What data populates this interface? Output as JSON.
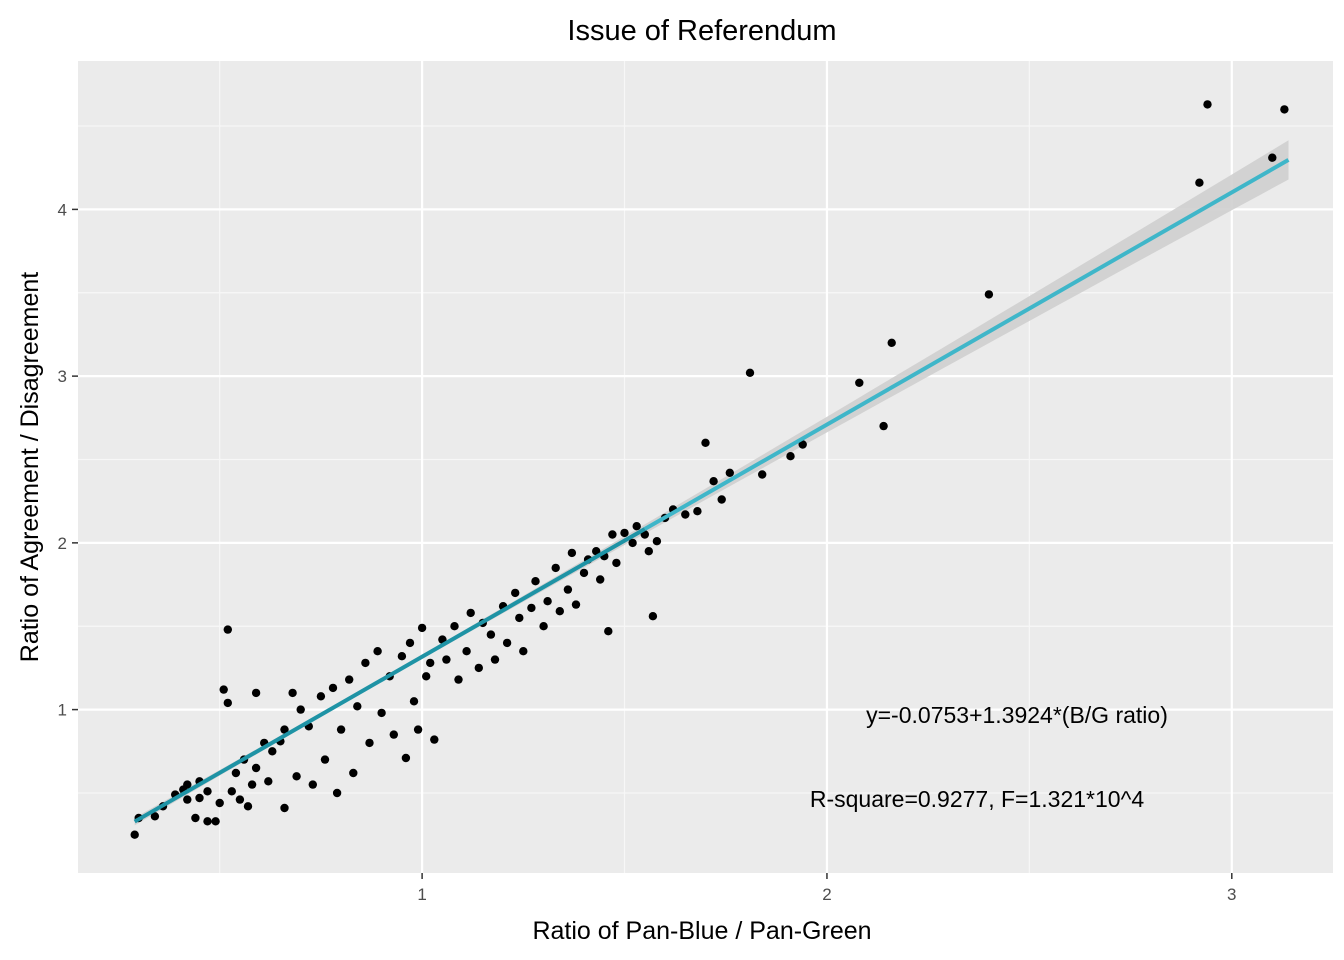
{
  "chart_data": {
    "type": "scatter",
    "title": "Issue of Referendum",
    "xlabel": "Ratio of Pan-Blue / Pan-Green",
    "ylabel": "Ratio of Agreement / Disagreement",
    "xlim": [
      0.15,
      3.25
    ],
    "ylim": [
      0.02,
      4.89
    ],
    "x_ticks": [
      1,
      2,
      3
    ],
    "x_tick_labels": [
      "1",
      "2",
      "3"
    ],
    "y_ticks": [
      1,
      2,
      3,
      4
    ],
    "y_tick_labels": [
      "1",
      "2",
      "3",
      "4"
    ],
    "grid": true,
    "legend": "none",
    "colors": {
      "panel": "#ebebeb",
      "grid_major": "#ffffff",
      "grid_minor": "#f7f7f7",
      "points": "#000000",
      "fit_line": "#3fb6c9",
      "fit_line_dense": "#1e93a5",
      "confidence_band": "#cfcfcf"
    },
    "fit": {
      "intercept": -0.0753,
      "slope": 1.3924,
      "x_range": [
        0.29,
        3.14
      ],
      "dense_until_x": 1.55
    },
    "annotations": [
      {
        "text": "y=-0.0753+1.3924*(B/G ratio)",
        "x": 2.5,
        "y": 0.98
      },
      {
        "text": "R-square=0.9277, F=1.321*10^4",
        "x": 2.43,
        "y": 0.48
      }
    ],
    "series": [
      {
        "points": [
          [
            0.29,
            0.25
          ],
          [
            0.3,
            0.35
          ],
          [
            0.34,
            0.36
          ],
          [
            0.36,
            0.42
          ],
          [
            0.39,
            0.49
          ],
          [
            0.41,
            0.52
          ],
          [
            0.42,
            0.55
          ],
          [
            0.42,
            0.46
          ],
          [
            0.44,
            0.35
          ],
          [
            0.45,
            0.47
          ],
          [
            0.45,
            0.57
          ],
          [
            0.47,
            0.51
          ],
          [
            0.47,
            0.33
          ],
          [
            0.49,
            0.33
          ],
          [
            0.5,
            0.44
          ],
          [
            0.51,
            1.12
          ],
          [
            0.52,
            1.48
          ],
          [
            0.52,
            1.04
          ],
          [
            0.53,
            0.51
          ],
          [
            0.54,
            0.62
          ],
          [
            0.55,
            0.46
          ],
          [
            0.56,
            0.7
          ],
          [
            0.57,
            0.42
          ],
          [
            0.58,
            0.55
          ],
          [
            0.59,
            1.1
          ],
          [
            0.59,
            0.65
          ],
          [
            0.61,
            0.8
          ],
          [
            0.62,
            0.57
          ],
          [
            0.63,
            0.75
          ],
          [
            0.65,
            0.81
          ],
          [
            0.66,
            0.88
          ],
          [
            0.66,
            0.41
          ],
          [
            0.68,
            1.1
          ],
          [
            0.69,
            0.6
          ],
          [
            0.7,
            1.0
          ],
          [
            0.72,
            0.9
          ],
          [
            0.73,
            0.55
          ],
          [
            0.75,
            1.08
          ],
          [
            0.76,
            0.7
          ],
          [
            0.78,
            1.13
          ],
          [
            0.79,
            0.5
          ],
          [
            0.8,
            0.88
          ],
          [
            0.82,
            1.18
          ],
          [
            0.83,
            0.62
          ],
          [
            0.84,
            1.02
          ],
          [
            0.86,
            1.28
          ],
          [
            0.87,
            0.8
          ],
          [
            0.89,
            1.35
          ],
          [
            0.9,
            0.98
          ],
          [
            0.92,
            1.2
          ],
          [
            0.93,
            0.85
          ],
          [
            0.95,
            1.32
          ],
          [
            0.96,
            0.71
          ],
          [
            0.97,
            1.4
          ],
          [
            0.98,
            1.05
          ],
          [
            0.99,
            0.88
          ],
          [
            1.0,
            1.49
          ],
          [
            1.01,
            1.2
          ],
          [
            1.02,
            1.28
          ],
          [
            1.03,
            0.82
          ],
          [
            1.05,
            1.42
          ],
          [
            1.06,
            1.3
          ],
          [
            1.08,
            1.5
          ],
          [
            1.09,
            1.18
          ],
          [
            1.11,
            1.35
          ],
          [
            1.12,
            1.58
          ],
          [
            1.14,
            1.25
          ],
          [
            1.15,
            1.52
          ],
          [
            1.17,
            1.45
          ],
          [
            1.18,
            1.3
          ],
          [
            1.2,
            1.62
          ],
          [
            1.21,
            1.4
          ],
          [
            1.23,
            1.7
          ],
          [
            1.24,
            1.55
          ],
          [
            1.25,
            1.35
          ],
          [
            1.27,
            1.61
          ],
          [
            1.28,
            1.77
          ],
          [
            1.3,
            1.5
          ],
          [
            1.31,
            1.65
          ],
          [
            1.33,
            1.85
          ],
          [
            1.34,
            1.59
          ],
          [
            1.36,
            1.72
          ],
          [
            1.37,
            1.94
          ],
          [
            1.38,
            1.63
          ],
          [
            1.4,
            1.82
          ],
          [
            1.41,
            1.9
          ],
          [
            1.43,
            1.95
          ],
          [
            1.44,
            1.78
          ],
          [
            1.45,
            1.92
          ],
          [
            1.46,
            1.47
          ],
          [
            1.47,
            2.05
          ],
          [
            1.48,
            1.88
          ],
          [
            1.5,
            2.06
          ],
          [
            1.52,
            2.0
          ],
          [
            1.53,
            2.1
          ],
          [
            1.55,
            2.05
          ],
          [
            1.56,
            1.95
          ],
          [
            1.57,
            1.56
          ],
          [
            1.58,
            2.01
          ],
          [
            1.6,
            2.15
          ],
          [
            1.62,
            2.2
          ],
          [
            1.65,
            2.17
          ],
          [
            1.68,
            2.19
          ],
          [
            1.7,
            2.6
          ],
          [
            1.72,
            2.37
          ],
          [
            1.74,
            2.26
          ],
          [
            1.76,
            2.42
          ],
          [
            1.81,
            3.02
          ],
          [
            1.84,
            2.41
          ],
          [
            1.91,
            2.52
          ],
          [
            1.94,
            2.59
          ],
          [
            2.08,
            2.96
          ],
          [
            2.14,
            2.7
          ],
          [
            2.16,
            3.2
          ],
          [
            2.4,
            3.49
          ],
          [
            2.92,
            4.16
          ],
          [
            2.94,
            4.63
          ],
          [
            3.1,
            4.31
          ],
          [
            3.13,
            4.6
          ]
        ]
      }
    ]
  }
}
